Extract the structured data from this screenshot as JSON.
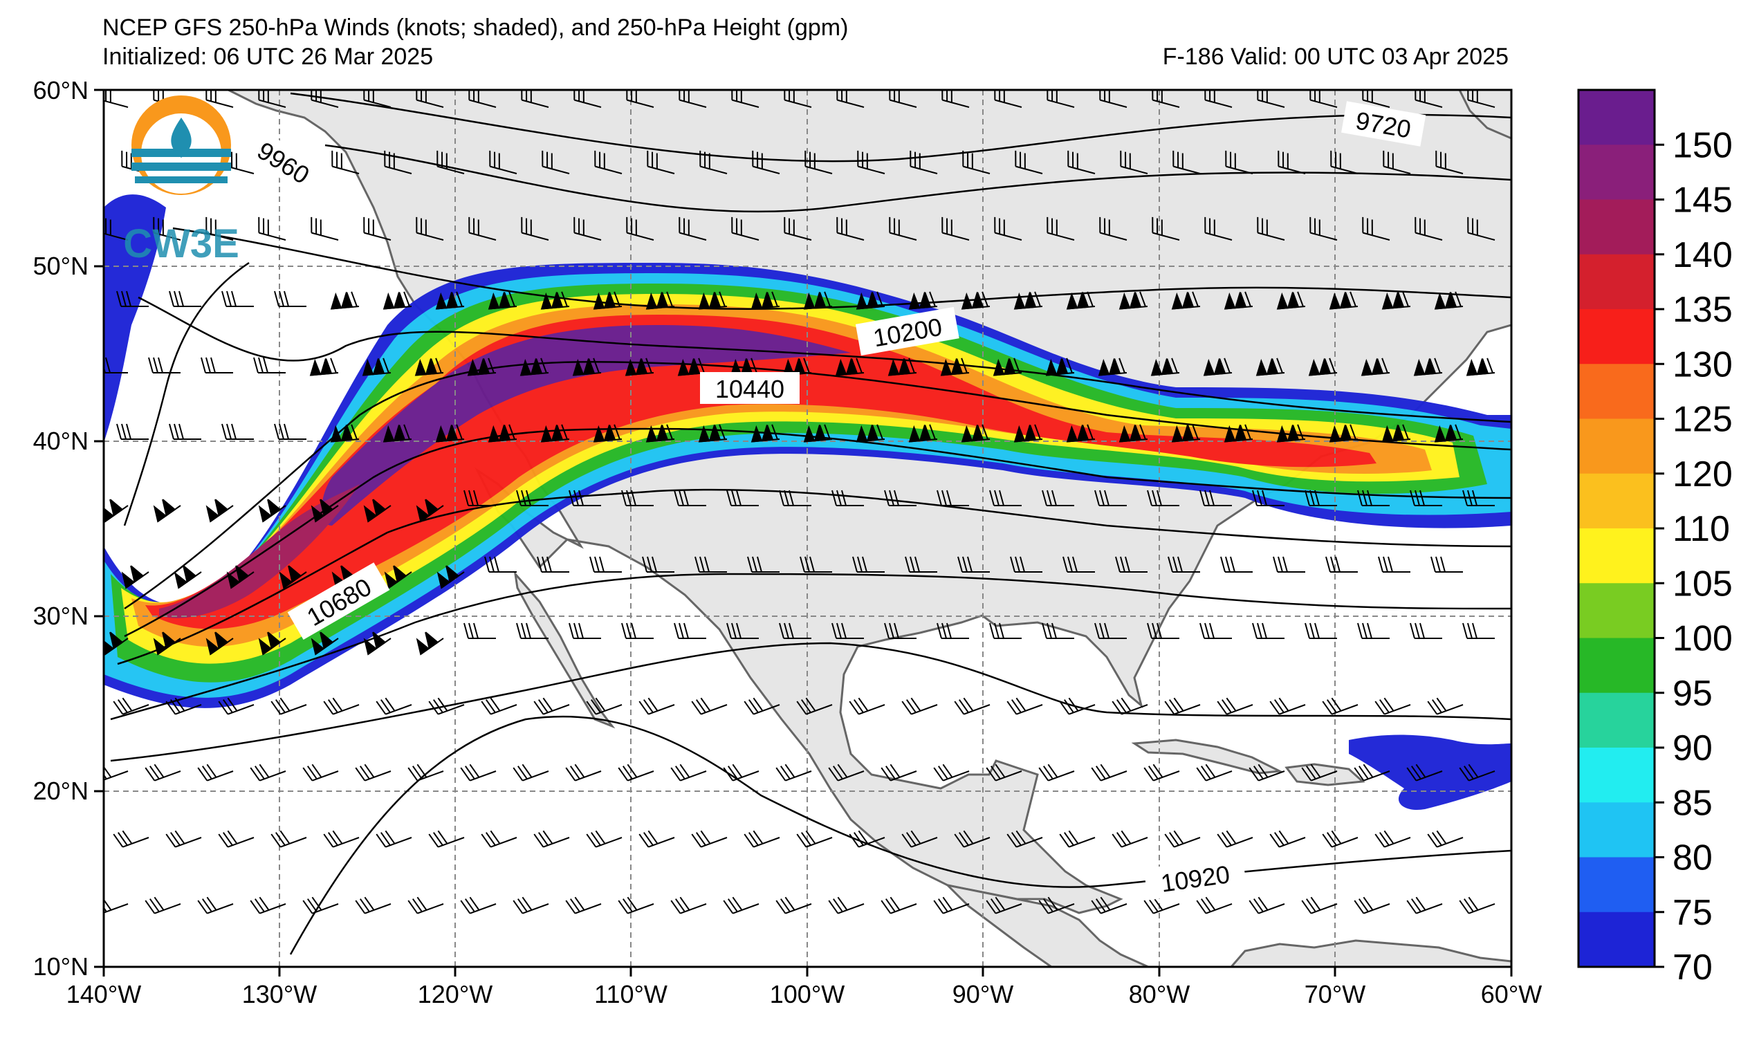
{
  "title": {
    "line1": "NCEP GFS 250-hPa Winds (knots; shaded), and 250-hPa Height (gpm)",
    "line2": "Initialized: 06 UTC 26 Mar 2025",
    "valid": "F-186  Valid: 00 UTC 03 Apr 2025"
  },
  "logo": {
    "text": "CW3E",
    "icon": "cw3e-logo-icon"
  },
  "map": {
    "lon_range": [
      -140,
      -60
    ],
    "lat_range": [
      10,
      60
    ],
    "lon_ticks": [
      "140°W",
      "130°W",
      "120°W",
      "110°W",
      "100°W",
      "90°W",
      "80°W",
      "70°W",
      "60°W"
    ],
    "lat_ticks": [
      "60°N",
      "50°N",
      "40°N",
      "30°N",
      "20°N",
      "10°N"
    ],
    "land_color": "#e6e6e6",
    "coast_color": "#666666"
  },
  "contour_labels": [
    {
      "text": "9960"
    },
    {
      "text": "9720"
    },
    {
      "text": "10200"
    },
    {
      "text": "10440"
    },
    {
      "text": "10680"
    },
    {
      "text": "10920"
    }
  ],
  "colorbar": {
    "labels": [
      "150",
      "145",
      "140",
      "135",
      "130",
      "125",
      "120",
      "110",
      "105",
      "100",
      "95",
      "90",
      "85",
      "80",
      "75",
      "70"
    ],
    "colors": [
      "#6a1d8e",
      "#8a1f7a",
      "#a31c5a",
      "#d4202d",
      "#f71f1a",
      "#f96a1c",
      "#f9981c",
      "#fbc01e",
      "#fff21d",
      "#79cc22",
      "#27b827",
      "#27d39c",
      "#22edf0",
      "#1fc4f3",
      "#1f5ef2",
      "#1d24d6"
    ]
  }
}
